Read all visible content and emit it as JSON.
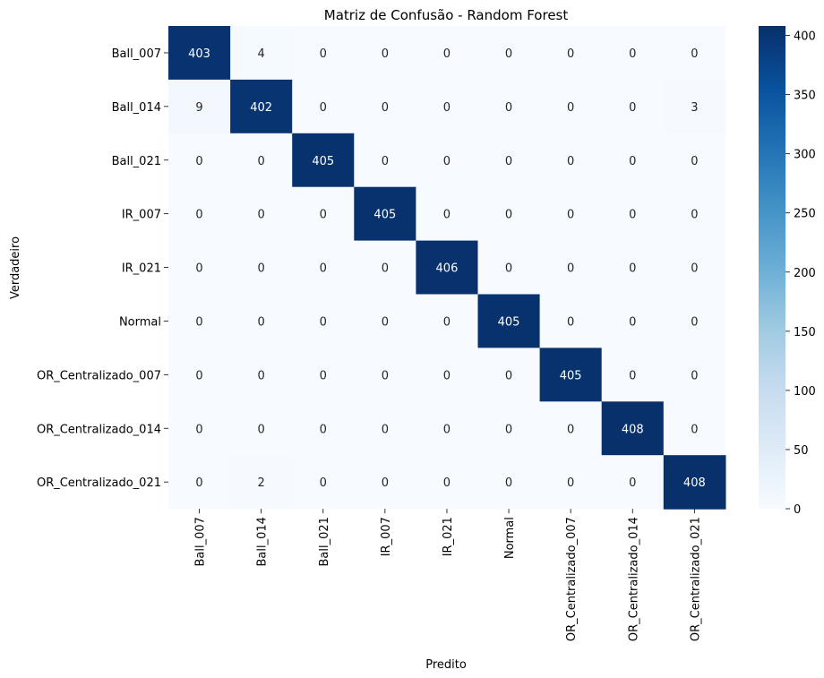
{
  "chart_data": {
    "type": "heatmap",
    "title": "Matriz de Confusão - Random Forest",
    "xlabel": "Predito",
    "ylabel": "Verdadeiro",
    "colormap": "Blues",
    "color_low": "#f7fbff",
    "color_high": "#08306b",
    "vmin": 0,
    "vmax": 408,
    "colorbar_ticks": [
      0,
      50,
      100,
      150,
      200,
      250,
      300,
      350,
      400
    ],
    "row_labels": [
      "Ball_007",
      "Ball_014",
      "Ball_021",
      "IR_007",
      "IR_021",
      "Normal",
      "OR_Centralizado_007",
      "OR_Centralizado_014",
      "OR_Centralizado_021"
    ],
    "col_labels": [
      "Ball_007",
      "Ball_014",
      "Ball_021",
      "IR_007",
      "IR_021",
      "Normal",
      "OR_Centralizado_007",
      "OR_Centralizado_014",
      "OR_Centralizado_021"
    ],
    "values": [
      [
        403,
        4,
        0,
        0,
        0,
        0,
        0,
        0,
        0
      ],
      [
        9,
        402,
        0,
        0,
        0,
        0,
        0,
        0,
        3
      ],
      [
        0,
        0,
        405,
        0,
        0,
        0,
        0,
        0,
        0
      ],
      [
        0,
        0,
        0,
        405,
        0,
        0,
        0,
        0,
        0
      ],
      [
        0,
        0,
        0,
        0,
        406,
        0,
        0,
        0,
        0
      ],
      [
        0,
        0,
        0,
        0,
        0,
        405,
        0,
        0,
        0
      ],
      [
        0,
        0,
        0,
        0,
        0,
        0,
        405,
        0,
        0
      ],
      [
        0,
        0,
        0,
        0,
        0,
        0,
        0,
        408,
        0
      ],
      [
        0,
        2,
        0,
        0,
        0,
        0,
        0,
        0,
        408
      ]
    ]
  }
}
